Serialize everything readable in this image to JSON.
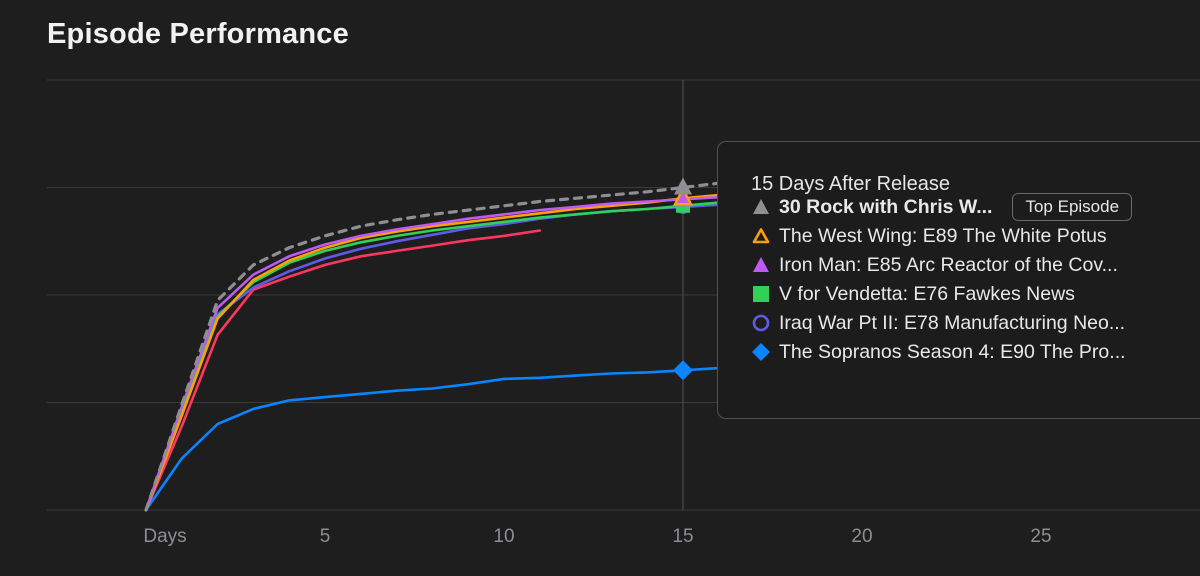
{
  "page": {
    "title": "Episode Performance"
  },
  "tooltip": {
    "header": "15 Days After Release",
    "badge": "Top Episode",
    "rows": [
      {
        "name": "30 Rock with Chris W...",
        "marker": "triangle-filled",
        "color": "#8e8e93",
        "bold": true
      },
      {
        "name": "The West Wing: E89 The White Potus",
        "marker": "triangle-outline",
        "color": "#ff9f0a",
        "bold": false
      },
      {
        "name": "Iron Man: E85 Arc Reactor of the Cov...",
        "marker": "triangle-filled",
        "color": "#bf5af2",
        "bold": false
      },
      {
        "name": "V for Vendetta: E76 Fawkes News",
        "marker": "square",
        "color": "#30d158",
        "bold": false
      },
      {
        "name": "Iraq War Pt II: E78 Manufacturing Neo...",
        "marker": "circle-outline",
        "color": "#5e5ce6",
        "bold": false
      },
      {
        "name": "The Sopranos Season 4: E90 The Pro...",
        "marker": "diamond",
        "color": "#0a84ff",
        "bold": false
      }
    ]
  },
  "chart_data": {
    "type": "line",
    "title": "Episode Performance",
    "xlabel": "",
    "ylabel": "",
    "xlim": [
      -1,
      30
    ],
    "ylim": [
      0,
      4
    ],
    "x_ticks": [
      0,
      5,
      10,
      15,
      20,
      25
    ],
    "x_tick_labels": [
      "Days",
      "5",
      "10",
      "15",
      "20",
      "25"
    ],
    "y_gridlines": [
      0,
      1,
      2,
      3,
      4
    ],
    "y_tick_labels": [],
    "grid": true,
    "crosshair_x": 15,
    "series": [
      {
        "name": "30 Rock with Chris W...",
        "color": "#8e8e93",
        "dashed": true,
        "marker": "triangle-filled",
        "x": [
          0,
          1,
          2,
          3,
          4,
          5,
          6,
          7,
          8,
          9,
          10,
          11,
          12,
          13,
          14,
          15,
          16
        ],
        "y": [
          0,
          0.98,
          1.95,
          2.28,
          2.44,
          2.55,
          2.64,
          2.7,
          2.75,
          2.79,
          2.83,
          2.87,
          2.9,
          2.93,
          2.96,
          3.0,
          3.04
        ]
      },
      {
        "name": "The West Wing: E89 The White Potus",
        "color": "#ff9f0a",
        "dashed": false,
        "marker": "triangle-outline",
        "x": [
          0,
          1,
          2,
          3,
          4,
          5,
          6,
          7,
          8,
          9,
          10,
          11,
          12,
          13,
          14,
          15,
          16
        ],
        "y": [
          0,
          0.88,
          1.78,
          2.14,
          2.32,
          2.44,
          2.53,
          2.59,
          2.64,
          2.68,
          2.72,
          2.76,
          2.8,
          2.83,
          2.86,
          2.9,
          2.93
        ]
      },
      {
        "name": "Iron Man: E85 Arc Reactor of the Cov...",
        "color": "#bf5af2",
        "dashed": false,
        "marker": "triangle-filled",
        "x": [
          0,
          1,
          2,
          3,
          4,
          5,
          6,
          7,
          8,
          9,
          10,
          11,
          12,
          13,
          14,
          15,
          16
        ],
        "y": [
          0,
          0.96,
          1.88,
          2.19,
          2.36,
          2.47,
          2.55,
          2.61,
          2.66,
          2.71,
          2.75,
          2.79,
          2.82,
          2.85,
          2.87,
          2.89,
          2.91
        ]
      },
      {
        "name": "V for Vendetta: E76 Fawkes News",
        "color": "#30d158",
        "dashed": false,
        "marker": "square",
        "x": [
          0,
          1,
          2,
          3,
          4,
          5,
          6,
          7,
          8,
          9,
          10,
          11,
          12,
          13,
          14,
          15,
          16
        ],
        "y": [
          0,
          0.9,
          1.8,
          2.12,
          2.3,
          2.41,
          2.49,
          2.55,
          2.6,
          2.64,
          2.68,
          2.72,
          2.75,
          2.78,
          2.8,
          2.83,
          2.86
        ]
      },
      {
        "name": "Iraq War Pt II: E78 Manufacturing Neo...",
        "color": "#5e5ce6",
        "dashed": false,
        "marker": "circle-outline",
        "x": [
          0,
          1,
          2,
          3,
          4,
          5,
          6,
          7,
          8,
          9,
          10,
          11,
          12,
          13,
          14,
          15,
          16
        ],
        "y": [
          0,
          0.9,
          1.82,
          2.07,
          2.22,
          2.34,
          2.43,
          2.5,
          2.56,
          2.62,
          2.66,
          2.71,
          2.75,
          2.78,
          2.8,
          2.82,
          2.84
        ]
      },
      {
        "name": "",
        "color": "#ff375f",
        "dashed": false,
        "marker": "none",
        "x": [
          0,
          1,
          2,
          3,
          4,
          5,
          6,
          7,
          8,
          9,
          10,
          11
        ],
        "y": [
          0,
          0.78,
          1.63,
          2.05,
          2.17,
          2.28,
          2.36,
          2.41,
          2.46,
          2.51,
          2.55,
          2.6
        ]
      },
      {
        "name": "The Sopranos Season 4: E90 The Pro...",
        "color": "#0a84ff",
        "dashed": false,
        "marker": "diamond",
        "x": [
          0,
          1,
          2,
          3,
          4,
          5,
          6,
          7,
          8,
          9,
          10,
          11,
          12,
          13,
          14,
          15,
          16
        ],
        "y": [
          0,
          0.48,
          0.8,
          0.94,
          1.02,
          1.05,
          1.08,
          1.11,
          1.13,
          1.17,
          1.22,
          1.23,
          1.25,
          1.27,
          1.28,
          1.3,
          1.32
        ]
      }
    ]
  }
}
